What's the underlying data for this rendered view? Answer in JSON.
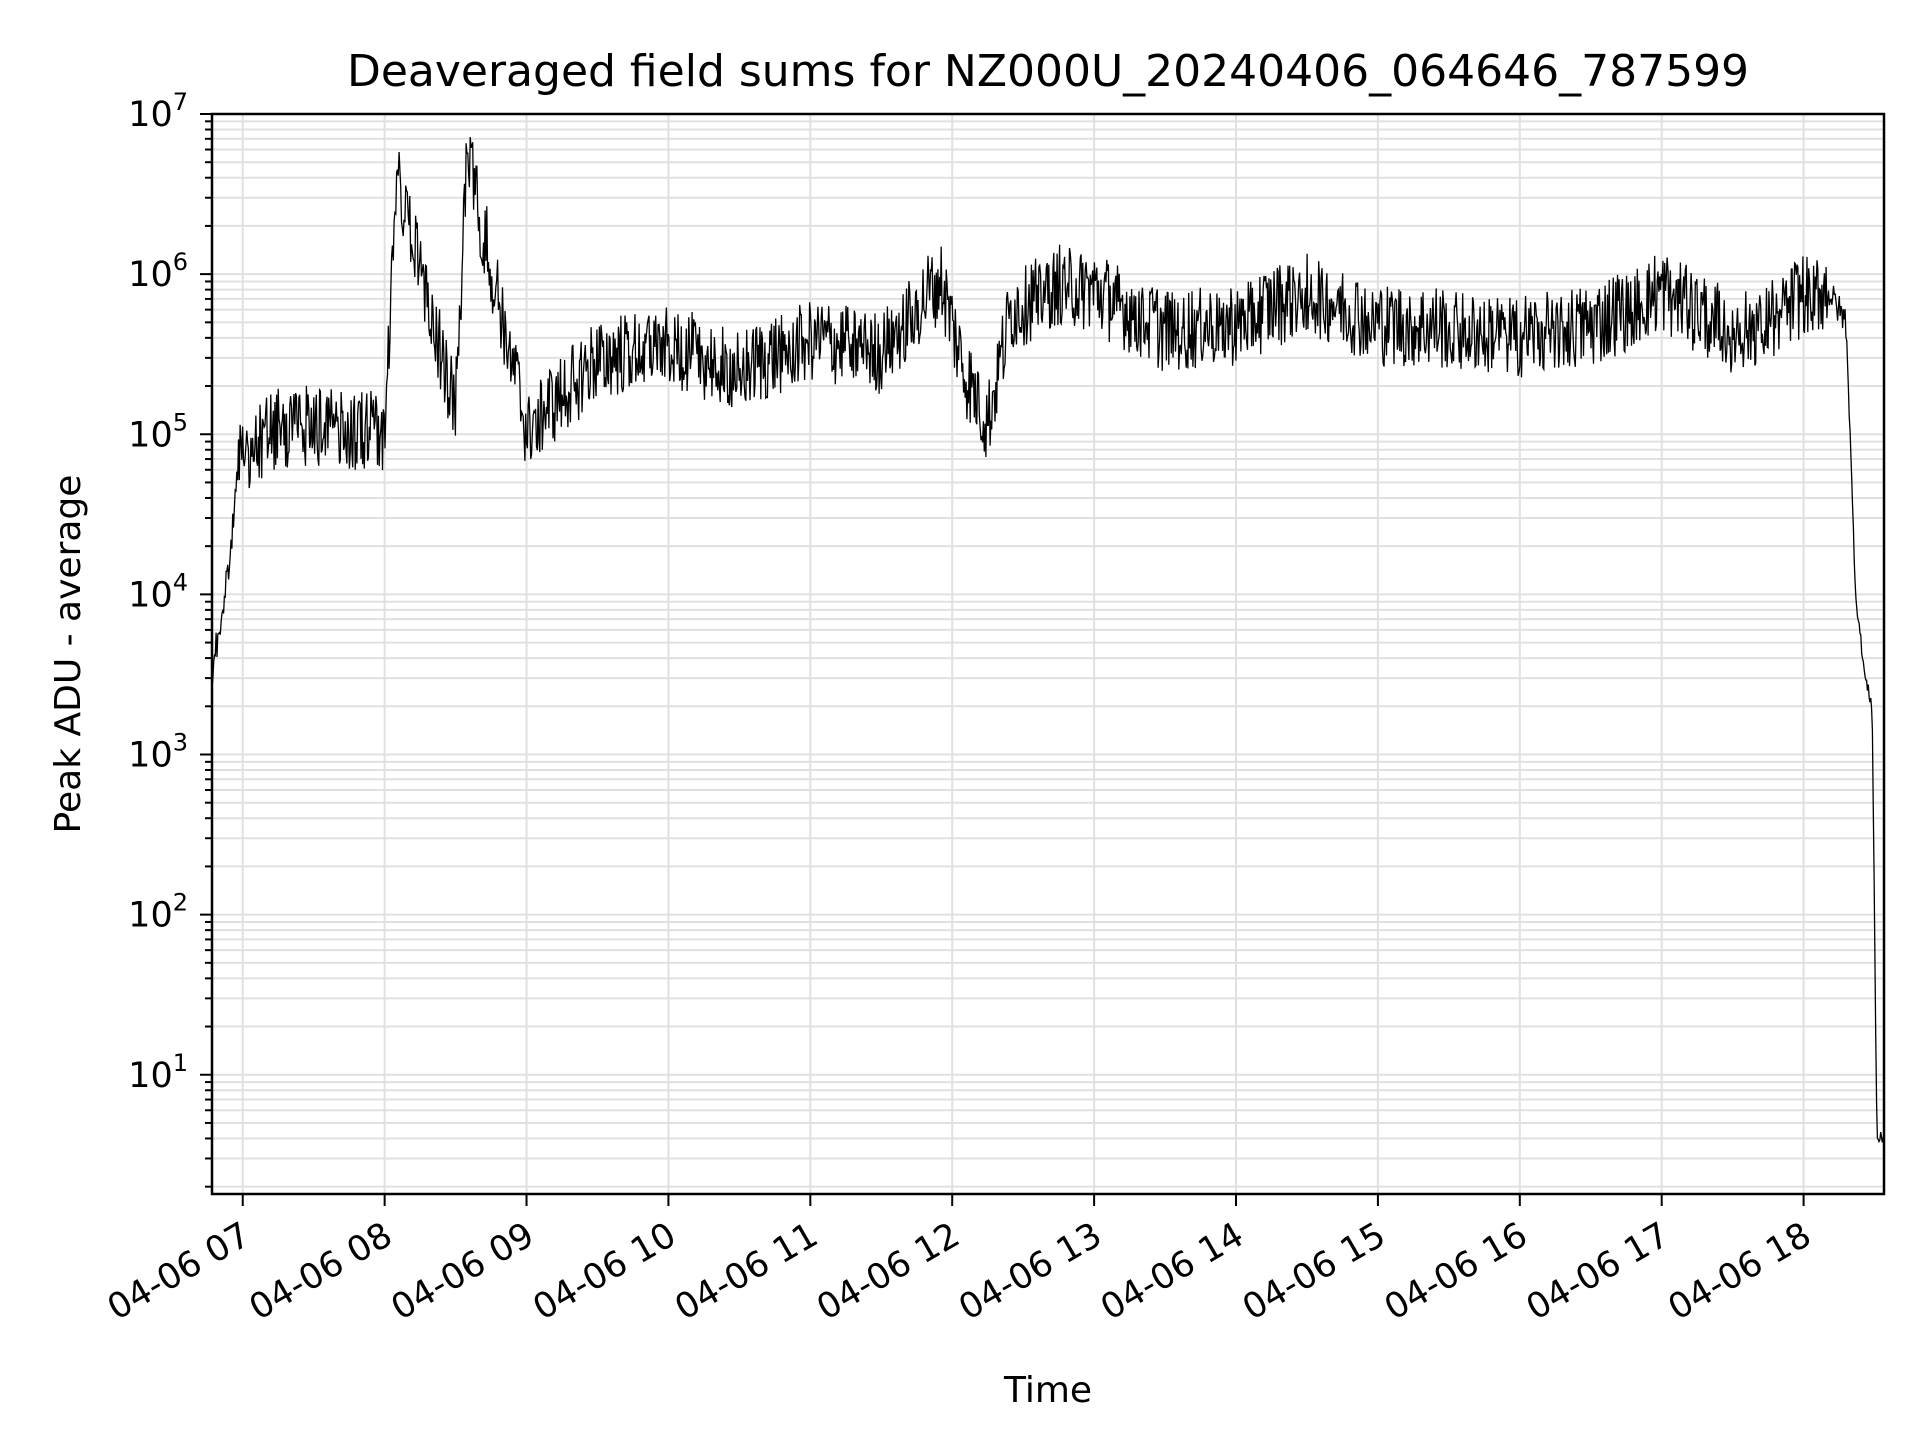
{
  "chart_data": {
    "type": "line",
    "title": "Deaveraged field sums for NZ000U_20240406_064646_787599",
    "xlabel": "Time",
    "ylabel": "Peak ADU - average",
    "yscale": "log",
    "ylim": [
      1.8,
      10000000
    ],
    "xlim": [
      "2024-04-06 06:47",
      "2024-04-06 18:34"
    ],
    "grid": true,
    "series_color": "#000000",
    "x_tick_labels": [
      "04-06 07",
      "04-06 08",
      "04-06 09",
      "04-06 10",
      "04-06 11",
      "04-06 12",
      "04-06 13",
      "04-06 14",
      "04-06 15",
      "04-06 16",
      "04-06 17",
      "04-06 18"
    ],
    "y_tick_labels": [
      {
        "base": "10",
        "exp": "1"
      },
      {
        "base": "10",
        "exp": "2"
      },
      {
        "base": "10",
        "exp": "3"
      },
      {
        "base": "10",
        "exp": "4"
      },
      {
        "base": "10",
        "exp": "5"
      },
      {
        "base": "10",
        "exp": "6"
      },
      {
        "base": "10",
        "exp": "7"
      }
    ],
    "series": [
      {
        "x": [
          "2024-04-06 06:47",
          "2024-04-06 06:49",
          "2024-04-06 06:52",
          "2024-04-06 06:55",
          "2024-04-06 06:58",
          "2024-04-06 07:00",
          "2024-04-06 07:15",
          "2024-04-06 07:30",
          "2024-04-06 07:45",
          "2024-04-06 08:00",
          "2024-04-06 08:05",
          "2024-04-06 08:30",
          "2024-04-06 08:35",
          "2024-04-06 09:00",
          "2024-04-06 09:30",
          "2024-04-06 10:00",
          "2024-04-06 10:30",
          "2024-04-06 11:00",
          "2024-04-06 11:30",
          "2024-04-06 11:55",
          "2024-04-06 12:05",
          "2024-04-06 12:15",
          "2024-04-06 12:25",
          "2024-04-06 12:45",
          "2024-04-06 13:00",
          "2024-04-06 13:30",
          "2024-04-06 14:00",
          "2024-04-06 14:30",
          "2024-04-06 15:00",
          "2024-04-06 15:30",
          "2024-04-06 16:00",
          "2024-04-06 16:30",
          "2024-04-06 17:00",
          "2024-04-06 17:30",
          "2024-04-06 17:50",
          "2024-04-06 18:00",
          "2024-04-06 18:10",
          "2024-04-06 18:18",
          "2024-04-06 18:22",
          "2024-04-06 18:26",
          "2024-04-06 18:29",
          "2024-04-06 18:31",
          "2024-04-06 18:34"
        ],
        "y": [
          2500,
          5000,
          9000,
          20000,
          60000,
          80000,
          110000,
          120000,
          105000,
          110000,
          4300000,
          150000,
          5700000,
          110000,
          300000,
          380000,
          250000,
          400000,
          330000,
          950000,
          250000,
          120000,
          600000,
          900000,
          800000,
          450000,
          500000,
          800000,
          500000,
          470000,
          420000,
          480000,
          800000,
          450000,
          550000,
          780000,
          800000,
          500000,
          10000,
          3000,
          2000,
          4,
          4
        ]
      }
    ]
  }
}
